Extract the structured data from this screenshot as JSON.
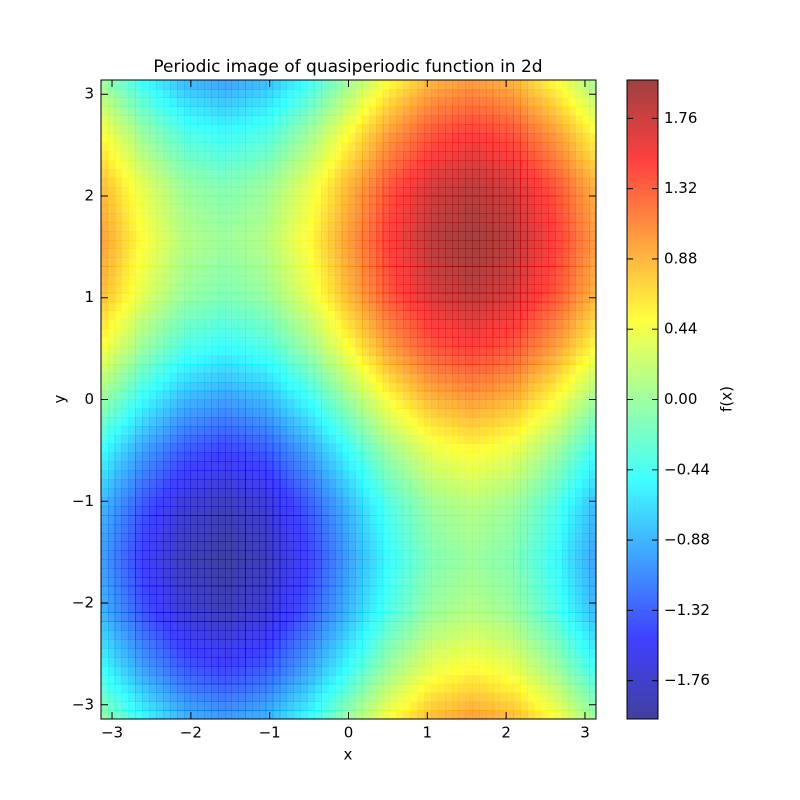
{
  "chart_data": {
    "type": "contourf",
    "title": "Periodic image of quasiperiodic function in 2d",
    "xlabel": "x",
    "ylabel": "y",
    "colormap": "jet",
    "alpha": 0.75,
    "x": [
      -3.14,
      -2.62,
      -2.09,
      -1.57,
      -1.05,
      -0.52,
      0,
      0.52,
      1.05,
      1.57,
      2.09,
      2.62,
      3.14
    ],
    "y": [
      -3.14,
      -2.62,
      -2.09,
      -1.57,
      -1.05,
      -0.52,
      0,
      0.52,
      1.05,
      1.57,
      2.09,
      2.62,
      3.14
    ],
    "z": [
      [
        0,
        -0.5,
        -0.87,
        -1,
        -0.87,
        -0.5,
        0,
        0.5,
        0.87,
        1,
        0.87,
        0.5,
        0
      ],
      [
        -0.5,
        -1,
        -1.37,
        -1.5,
        -1.37,
        -1,
        -0.5,
        0,
        0.37,
        0.5,
        0.37,
        0,
        -0.5
      ],
      [
        -0.87,
        -1.37,
        -1.74,
        -1.87,
        -1.74,
        -1.37,
        -0.87,
        -0.37,
        0,
        0.13,
        0,
        -0.37,
        -0.87
      ],
      [
        -1,
        -1.5,
        -1.87,
        -2,
        -1.87,
        -1.5,
        -1,
        -0.5,
        -0.13,
        0,
        -0.13,
        -0.5,
        -1
      ],
      [
        -0.87,
        -1.37,
        -1.74,
        -1.87,
        -1.74,
        -1.37,
        -0.87,
        -0.37,
        0,
        0.13,
        0,
        -0.37,
        -0.87
      ],
      [
        -0.5,
        -1,
        -1.37,
        -1.5,
        -1.37,
        -1,
        -0.5,
        0,
        0.37,
        0.5,
        0.37,
        0,
        -0.5
      ],
      [
        0,
        -0.5,
        -0.87,
        -1,
        -0.87,
        -0.5,
        0,
        0.5,
        0.87,
        1,
        0.87,
        0.5,
        0
      ],
      [
        0.5,
        0,
        -0.37,
        -0.5,
        -0.37,
        0,
        0.5,
        1,
        1.37,
        1.5,
        1.37,
        1,
        0.5
      ],
      [
        0.87,
        0.37,
        0,
        -0.13,
        0,
        0.37,
        0.87,
        1.37,
        1.74,
        1.87,
        1.74,
        1.37,
        0.87
      ],
      [
        1,
        0.5,
        0.13,
        0,
        0.13,
        0.5,
        1,
        1.5,
        1.87,
        2,
        1.87,
        1.5,
        1
      ],
      [
        0.87,
        0.37,
        0,
        -0.13,
        0,
        0.37,
        0.87,
        1.37,
        1.74,
        1.87,
        1.74,
        1.37,
        0.87
      ],
      [
        0.5,
        0,
        -0.37,
        -0.5,
        -0.37,
        0,
        0.5,
        1,
        1.37,
        1.5,
        1.37,
        1,
        0.5
      ],
      [
        0,
        -0.5,
        -0.87,
        -1,
        -0.87,
        -0.5,
        0,
        0.5,
        0.87,
        1,
        0.87,
        0.5,
        0
      ]
    ],
    "xlim": [
      -3.14,
      3.14
    ],
    "ylim": [
      -3.14,
      3.14
    ],
    "xticks": [
      {
        "value": -3,
        "label": "−3"
      },
      {
        "value": -2,
        "label": "−2"
      },
      {
        "value": -1,
        "label": "−1"
      },
      0,
      1,
      2,
      3
    ],
    "yticks": [
      {
        "value": -3,
        "label": "−3"
      },
      {
        "value": -2,
        "label": "−2"
      },
      {
        "value": -1,
        "label": "−1"
      },
      0,
      1,
      2,
      3
    ],
    "colorbar": {
      "label": "f(x)",
      "lim": [
        -2,
        2
      ],
      "ticks": [
        {
          "value": -1.76,
          "label": "−1.76"
        },
        {
          "value": -1.32,
          "label": "−1.32"
        },
        {
          "value": -0.88,
          "label": "−0.88"
        },
        {
          "value": -0.44,
          "label": "−0.44"
        },
        {
          "value": 0,
          "label": "0.00"
        },
        0.44,
        0.88,
        1.32,
        1.76
      ]
    }
  }
}
